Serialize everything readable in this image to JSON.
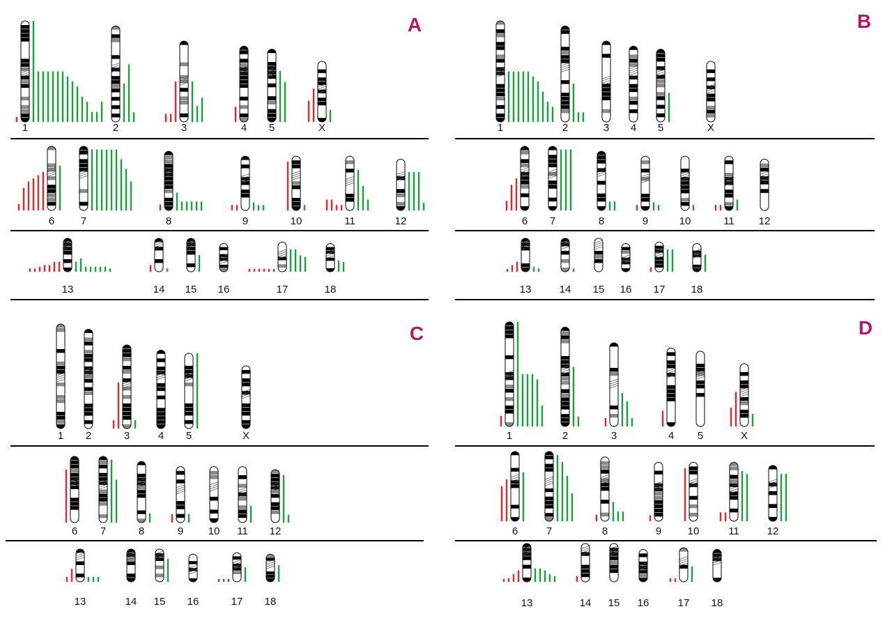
{
  "colors": {
    "gain": "#1a9e3a",
    "loss": "#e0262a",
    "panel_label": "#b0186e",
    "band": "#000000"
  },
  "panels": [
    {
      "key": "A",
      "label": "A",
      "rows": [
        {
          "chromosomes": [
            {
              "name": "1",
              "size": 1.0,
              "cen": 0.48,
              "gains": [
                1.0,
                0.5,
                0.5,
                0.5,
                0.5,
                0.5,
                0.5,
                0.45,
                0.4,
                0.35,
                0.25,
                0.2,
                0.1,
                0.1,
                0.2
              ],
              "losses": [
                0.05
              ]
            },
            {
              "name": "2",
              "size": 0.95,
              "cen": 0.4,
              "gains": [
                0.4,
                0.6,
                0.1
              ],
              "losses": []
            },
            {
              "name": "3",
              "size": 0.8,
              "cen": 0.45,
              "gains": [
                0.5,
                0.2,
                0.3
              ],
              "losses": [
                0.5,
                0.1,
                0.1
              ]
            },
            {
              "name": "4",
              "size": 0.75,
              "cen": 0.28,
              "gains": [],
              "losses": [
                0.2
              ]
            },
            {
              "name": "5",
              "size": 0.72,
              "cen": 0.27,
              "gains": [
                0.7,
                0.55
              ],
              "losses": []
            },
            {
              "name": "X",
              "size": 0.6,
              "cen": 0.4,
              "gains": [
                0.2
              ],
              "losses": [
                0.55,
                0.35
              ]
            }
          ]
        },
        {
          "chromosomes": [
            {
              "name": "6",
              "size": 0.65,
              "cen": 0.35,
              "gains": [
                0.7
              ],
              "losses": [
                0.6,
                0.55,
                0.5,
                0.45,
                0.35,
                0.1
              ]
            },
            {
              "name": "7",
              "size": 0.65,
              "cen": 0.38,
              "gains": [
                0.95,
                0.95,
                0.95,
                0.95,
                0.95,
                0.95,
                0.8,
                0.65,
                0.45
              ],
              "losses": []
            },
            {
              "name": "8",
              "size": 0.6,
              "cen": 0.3,
              "gains": [
                0.3,
                0.15,
                0.15,
                0.15,
                0.15,
                0.15
              ],
              "losses": [
                0.1
              ]
            },
            {
              "name": "9",
              "size": 0.55,
              "cen": 0.35,
              "gains": [
                0.15,
                0.1,
                0.1
              ],
              "losses": [
                0.1,
                0.1
              ]
            },
            {
              "name": "10",
              "size": 0.55,
              "cen": 0.3,
              "gains": [
                0.1
              ],
              "losses": [
                0.9
              ]
            },
            {
              "name": "11",
              "size": 0.55,
              "cen": 0.4,
              "gains": [
                0.75,
                0.45,
                0.2
              ],
              "losses": [
                0.1,
                0.1,
                0.2,
                0.2
              ]
            },
            {
              "name": "12",
              "size": 0.52,
              "cen": 0.27,
              "gains": [
                0.75,
                0.75,
                0.75,
                0.15
              ],
              "losses": []
            }
          ]
        },
        {
          "chromosomes": [
            {
              "name": "13",
              "size": 0.45,
              "cen": 0.1,
              "gains": [
                0.3,
                0.4,
                0.15,
                0.15,
                0.15,
                0.15,
                0.15,
                0.1
              ],
              "losses": [
                0.3,
                0.3,
                0.2,
                0.2,
                0.15,
                0.1,
                0.1
              ]
            },
            {
              "name": "14",
              "size": 0.45,
              "cen": 0.1,
              "gains": [
                0.1
              ],
              "losses": [
                0.2
              ]
            },
            {
              "name": "15",
              "size": 0.45,
              "cen": 0.1,
              "gains": [
                0.5
              ],
              "losses": []
            },
            {
              "name": "16",
              "size": 0.38,
              "cen": 0.45,
              "gains": [],
              "losses": []
            },
            {
              "name": "17",
              "size": 0.4,
              "cen": 0.3,
              "gains": [
                0.75,
                0.75,
                0.55,
                0.5
              ],
              "losses": [
                0.1,
                0.1,
                0.1,
                0.1,
                0.1,
                0.1
              ]
            },
            {
              "name": "18",
              "size": 0.38,
              "cen": 0.25,
              "gains": [
                0.4,
                0.35
              ],
              "losses": []
            }
          ]
        }
      ]
    },
    {
      "key": "B",
      "label": "B",
      "rows": [
        {
          "chromosomes": [
            {
              "name": "1",
              "size": 1.0,
              "cen": 0.48,
              "gains": [
                0.5,
                0.5,
                0.5,
                0.5,
                0.5,
                0.45,
                0.4,
                0.3,
                0.2,
                0.15
              ],
              "losses": []
            },
            {
              "name": "2",
              "size": 0.95,
              "cen": 0.4,
              "gains": [
                0.4,
                0.1,
                0.1
              ],
              "losses": []
            },
            {
              "name": "3",
              "size": 0.8,
              "cen": 0.45,
              "gains": [],
              "losses": []
            },
            {
              "name": "4",
              "size": 0.75,
              "cen": 0.28,
              "gains": [],
              "losses": []
            },
            {
              "name": "5",
              "size": 0.72,
              "cen": 0.27,
              "gains": [
                0.4
              ],
              "losses": []
            },
            {
              "name": "X",
              "size": 0.6,
              "cen": 0.4,
              "gains": [],
              "losses": []
            }
          ]
        },
        {
          "chromosomes": [
            {
              "name": "6",
              "size": 0.65,
              "cen": 0.35,
              "gains": [],
              "losses": [
                0.5,
                0.4,
                0.15
              ]
            },
            {
              "name": "7",
              "size": 0.65,
              "cen": 0.38,
              "gains": [
                0.95,
                0.95,
                0.95
              ],
              "losses": []
            },
            {
              "name": "8",
              "size": 0.6,
              "cen": 0.3,
              "gains": [
                0.15,
                0.15
              ],
              "losses": []
            },
            {
              "name": "9",
              "size": 0.55,
              "cen": 0.35,
              "gains": [
                0.15,
                0.1
              ],
              "losses": [
                0.1
              ]
            },
            {
              "name": "10",
              "size": 0.55,
              "cen": 0.3,
              "gains": [
                0.1
              ],
              "losses": []
            },
            {
              "name": "11",
              "size": 0.55,
              "cen": 0.4,
              "gains": [
                0.2
              ],
              "losses": [
                0.1,
                0.1
              ]
            },
            {
              "name": "12",
              "size": 0.52,
              "cen": 0.27,
              "gains": [],
              "losses": []
            }
          ]
        },
        {
          "chromosomes": [
            {
              "name": "13",
              "size": 0.45,
              "cen": 0.1,
              "gains": [
                0.15,
                0.1
              ],
              "losses": [
                0.3,
                0.2,
                0.05
              ]
            },
            {
              "name": "14",
              "size": 0.45,
              "cen": 0.1,
              "gains": [
                0.1
              ],
              "losses": []
            },
            {
              "name": "15",
              "size": 0.45,
              "cen": 0.1,
              "gains": [],
              "losses": []
            },
            {
              "name": "16",
              "size": 0.38,
              "cen": 0.45,
              "gains": [],
              "losses": []
            },
            {
              "name": "17",
              "size": 0.4,
              "cen": 0.3,
              "gains": [
                0.75,
                0.75
              ],
              "losses": [
                0.15
              ]
            },
            {
              "name": "18",
              "size": 0.38,
              "cen": 0.25,
              "gains": [
                0.6
              ],
              "losses": []
            }
          ]
        }
      ]
    },
    {
      "key": "C",
      "label": "C",
      "rows": [
        {
          "chromosomes": [
            {
              "name": "1",
              "size": 1.0,
              "cen": 0.48,
              "gains": [],
              "losses": []
            },
            {
              "name": "2",
              "size": 0.95,
              "cen": 0.4,
              "gains": [],
              "losses": []
            },
            {
              "name": "3",
              "size": 0.8,
              "cen": 0.45,
              "gains": [
                0.1
              ],
              "losses": [
                0.55,
                0.1
              ]
            },
            {
              "name": "4",
              "size": 0.75,
              "cen": 0.28,
              "gains": [],
              "losses": []
            },
            {
              "name": "5",
              "size": 0.72,
              "cen": 0.27,
              "gains": [
                1.0
              ],
              "losses": []
            },
            {
              "name": "X",
              "size": 0.6,
              "cen": 0.4,
              "gains": [],
              "losses": []
            }
          ]
        },
        {
          "chromosomes": [
            {
              "name": "6",
              "size": 0.65,
              "cen": 0.35,
              "gains": [],
              "losses": [
                0.8
              ]
            },
            {
              "name": "7",
              "size": 0.65,
              "cen": 0.38,
              "gains": [
                0.95,
                0.65
              ],
              "losses": []
            },
            {
              "name": "8",
              "size": 0.6,
              "cen": 0.3,
              "gains": [
                0.15
              ],
              "losses": []
            },
            {
              "name": "9",
              "size": 0.55,
              "cen": 0.35,
              "gains": [
                0.15
              ],
              "losses": [
                0.15
              ]
            },
            {
              "name": "10",
              "size": 0.55,
              "cen": 0.3,
              "gains": [],
              "losses": []
            },
            {
              "name": "11",
              "size": 0.55,
              "cen": 0.4,
              "gains": [
                0.3
              ],
              "losses": []
            },
            {
              "name": "12",
              "size": 0.52,
              "cen": 0.27,
              "gains": [
                0.9,
                0.15
              ],
              "losses": []
            }
          ]
        },
        {
          "chromosomes": [
            {
              "name": "13",
              "size": 0.45,
              "cen": 0.1,
              "gains": [
                0.15,
                0.15,
                0.15
              ],
              "losses": [
                0.4,
                0.15
              ]
            },
            {
              "name": "14",
              "size": 0.45,
              "cen": 0.1,
              "gains": [],
              "losses": []
            },
            {
              "name": "15",
              "size": 0.45,
              "cen": 0.1,
              "gains": [
                0.7
              ],
              "losses": []
            },
            {
              "name": "16",
              "size": 0.38,
              "cen": 0.45,
              "gains": [],
              "losses": []
            },
            {
              "name": "17",
              "size": 0.4,
              "cen": 0.3,
              "gains": [
                0.5
              ],
              "losses": [
                0.1,
                0.1,
                0.1
              ]
            },
            {
              "name": "18",
              "size": 0.38,
              "cen": 0.25,
              "gains": [
                0.6
              ],
              "losses": []
            }
          ]
        }
      ]
    },
    {
      "key": "D",
      "label": "D",
      "rows": [
        {
          "chromosomes": [
            {
              "name": "1",
              "size": 1.0,
              "cen": 0.48,
              "gains": [
                1.0,
                0.5,
                0.5,
                0.5,
                0.45,
                0.2
              ],
              "losses": [
                0.1
              ]
            },
            {
              "name": "2",
              "size": 0.95,
              "cen": 0.4,
              "gains": [
                0.6,
                0.1
              ],
              "losses": []
            },
            {
              "name": "3",
              "size": 0.8,
              "cen": 0.45,
              "gains": [
                0.4,
                0.3,
                0.1
              ],
              "losses": [
                0.1
              ]
            },
            {
              "name": "4",
              "size": 0.75,
              "cen": 0.28,
              "gains": [],
              "losses": [
                0.2
              ]
            },
            {
              "name": "5",
              "size": 0.72,
              "cen": 0.27,
              "gains": [],
              "losses": []
            },
            {
              "name": "X",
              "size": 0.6,
              "cen": 0.4,
              "gains": [
                0.2
              ],
              "losses": [
                0.55,
                0.3
              ]
            }
          ]
        },
        {
          "chromosomes": [
            {
              "name": "6",
              "size": 0.65,
              "cen": 0.35,
              "gains": [
                0.7
              ],
              "losses": [
                0.6,
                0.5
              ]
            },
            {
              "name": "7",
              "size": 0.65,
              "cen": 0.38,
              "gains": [
                0.95,
                0.85,
                0.65,
                0.4
              ],
              "losses": []
            },
            {
              "name": "8",
              "size": 0.6,
              "cen": 0.3,
              "gains": [
                0.3,
                0.15,
                0.15
              ],
              "losses": [
                0.1
              ]
            },
            {
              "name": "9",
              "size": 0.55,
              "cen": 0.35,
              "gains": [],
              "losses": [
                0.1
              ]
            },
            {
              "name": "10",
              "size": 0.55,
              "cen": 0.3,
              "gains": [],
              "losses": [
                0.9
              ]
            },
            {
              "name": "11",
              "size": 0.55,
              "cen": 0.4,
              "gains": [
                0.85,
                0.8
              ],
              "losses": [
                0.15,
                0.15
              ]
            },
            {
              "name": "12",
              "size": 0.52,
              "cen": 0.27,
              "gains": [
                0.85,
                0.85
              ],
              "losses": []
            }
          ]
        },
        {
          "chromosomes": [
            {
              "name": "13",
              "size": 0.45,
              "cen": 0.1,
              "gains": [
                0.35,
                0.35,
                0.3,
                0.2,
                0.15
              ],
              "losses": [
                0.3,
                0.2,
                0.1,
                0.05
              ]
            },
            {
              "name": "14",
              "size": 0.45,
              "cen": 0.1,
              "gains": [],
              "losses": [
                0.15
              ]
            },
            {
              "name": "15",
              "size": 0.45,
              "cen": 0.1,
              "gains": [],
              "losses": []
            },
            {
              "name": "16",
              "size": 0.38,
              "cen": 0.45,
              "gains": [],
              "losses": []
            },
            {
              "name": "17",
              "size": 0.4,
              "cen": 0.3,
              "gains": [
                0.45
              ],
              "losses": [
                0.1,
                0.1
              ]
            },
            {
              "name": "18",
              "size": 0.38,
              "cen": 0.25,
              "gains": [],
              "losses": []
            }
          ]
        }
      ]
    }
  ]
}
